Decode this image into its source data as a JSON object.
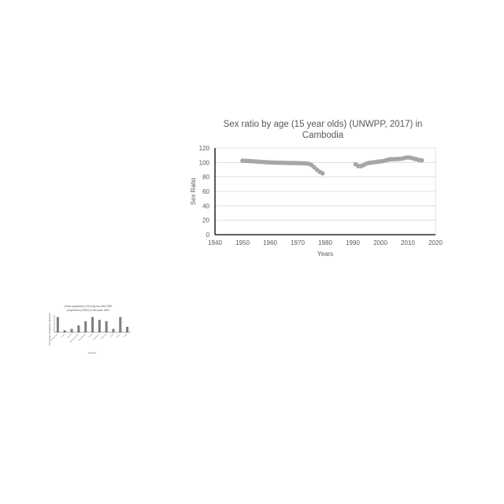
{
  "chart_data": [
    {
      "type": "scatter",
      "title_line1": "Sex ratio by age (15 year olds) (UNWPP, 2017) in",
      "title_line2": "Cambodia",
      "xlabel": "Years",
      "ylabel": "Sex Ratio",
      "xlim": [
        1940,
        2020
      ],
      "ylim": [
        0,
        120
      ],
      "x_ticks": [
        "1940",
        "1950",
        "1960",
        "1970",
        "1980",
        "1990",
        "2000",
        "2010",
        "2020"
      ],
      "y_ticks": [
        "0",
        "20",
        "40",
        "60",
        "80",
        "100",
        "120"
      ],
      "grid": "horizontal",
      "marker_color": "#a6a6a6",
      "series": [
        {
          "x": [
            1950,
            1951,
            1952,
            1953,
            1954,
            1955,
            1956,
            1957,
            1958,
            1959,
            1960,
            1961,
            1962,
            1963,
            1964,
            1965,
            1966,
            1967,
            1968,
            1969,
            1970,
            1971,
            1972,
            1973,
            1974,
            1975,
            1976,
            1977,
            1978,
            1979,
            1991,
            1992,
            1993,
            1994,
            1995,
            1996,
            1997,
            1998,
            1999,
            2000,
            2001,
            2002,
            2003,
            2004,
            2005,
            2006,
            2007,
            2008,
            2009,
            2010,
            2011,
            2012,
            2013,
            2014,
            2015
          ],
          "y": [
            102.5,
            102.3,
            102.1,
            101.9,
            101.6,
            101.3,
            101.0,
            100.8,
            100.5,
            100.3,
            100.1,
            99.9,
            99.8,
            99.7,
            99.6,
            99.5,
            99.4,
            99.3,
            99.3,
            99.2,
            99.1,
            99.0,
            98.9,
            98.7,
            98.2,
            96.5,
            93.5,
            90.0,
            87.0,
            85.0,
            97.5,
            95.0,
            95.0,
            96.5,
            98.5,
            99.5,
            100.0,
            100.5,
            101.0,
            101.5,
            102.0,
            103.0,
            104.0,
            104.5,
            104.5,
            104.8,
            105.0,
            105.5,
            106.5,
            107.0,
            106.5,
            105.5,
            104.5,
            103.5,
            103.0
          ]
        }
      ]
    },
    {
      "type": "bar",
      "title_line1": "Urban population (%) long-run with 2050",
      "title_line2": "projections (OWID) in the year 1951",
      "xlabel": "Country",
      "ylabel": "Percentage of population urbanized",
      "categories": [
        "Burkina Faso",
        "Eritrea",
        "Burundi",
        "Equatorial Guinea",
        "Guinea-Bissau",
        "Guinea",
        "Guadeloupe",
        "Cameroon",
        "Congo",
        "Cyprus",
        "Gabon"
      ],
      "values": [
        22,
        3,
        5,
        10,
        16,
        22,
        18,
        16,
        5,
        22,
        8
      ],
      "ylim": [
        0,
        25
      ],
      "bar_color": "#808080"
    }
  ]
}
